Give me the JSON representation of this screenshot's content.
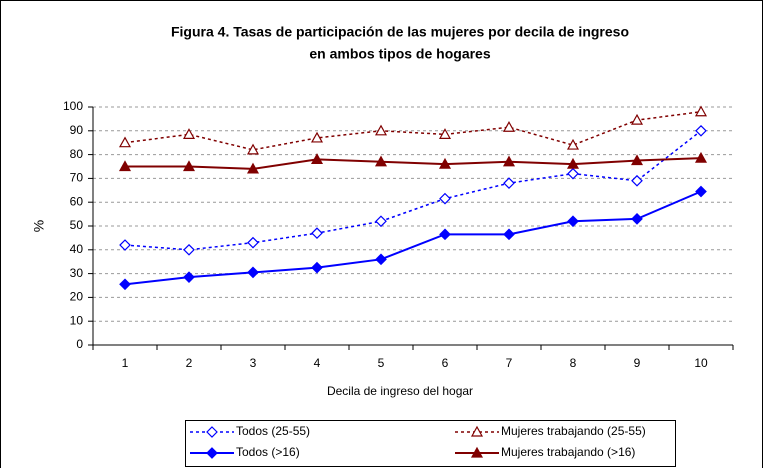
{
  "chart_data": {
    "type": "line",
    "title": [
      "Figura 4. Tasas de participación de las mujeres por decila de ingreso",
      "en ambos tipos de hogares"
    ],
    "x_label": "Decila de ingreso del hogar",
    "y_label": "%",
    "categories": [
      "1",
      "2",
      "3",
      "4",
      "5",
      "6",
      "7",
      "8",
      "9",
      "10"
    ],
    "ylim": [
      0,
      100
    ],
    "yticks": [
      0,
      10,
      20,
      30,
      40,
      50,
      60,
      70,
      80,
      90,
      100
    ],
    "grid": true,
    "legend": "bottom",
    "series": [
      {
        "name": "Todos (25-55)",
        "color": "#0000ff",
        "dashed": true,
        "marker": "diamond",
        "filled": false,
        "values": [
          42,
          40,
          43,
          47,
          52,
          61.5,
          68,
          72,
          69,
          90
        ]
      },
      {
        "name": "Mujeres trabajando (25-55)",
        "color": "#800000",
        "dashed": true,
        "marker": "triangle",
        "filled": false,
        "values": [
          85,
          88.5,
          82,
          87,
          90,
          88.5,
          91.5,
          84,
          94.5,
          98
        ]
      },
      {
        "name": "Todos (>16)",
        "color": "#0000ff",
        "dashed": false,
        "marker": "diamond",
        "filled": true,
        "values": [
          25.5,
          28.5,
          30.5,
          32.5,
          36,
          46.5,
          46.5,
          52,
          53,
          64.5
        ]
      },
      {
        "name": "Mujeres trabajando (>16)",
        "color": "#800000",
        "dashed": false,
        "marker": "triangle",
        "filled": true,
        "values": [
          75,
          75,
          74,
          78,
          77,
          76,
          77,
          76,
          77.5,
          78.5
        ]
      }
    ]
  }
}
